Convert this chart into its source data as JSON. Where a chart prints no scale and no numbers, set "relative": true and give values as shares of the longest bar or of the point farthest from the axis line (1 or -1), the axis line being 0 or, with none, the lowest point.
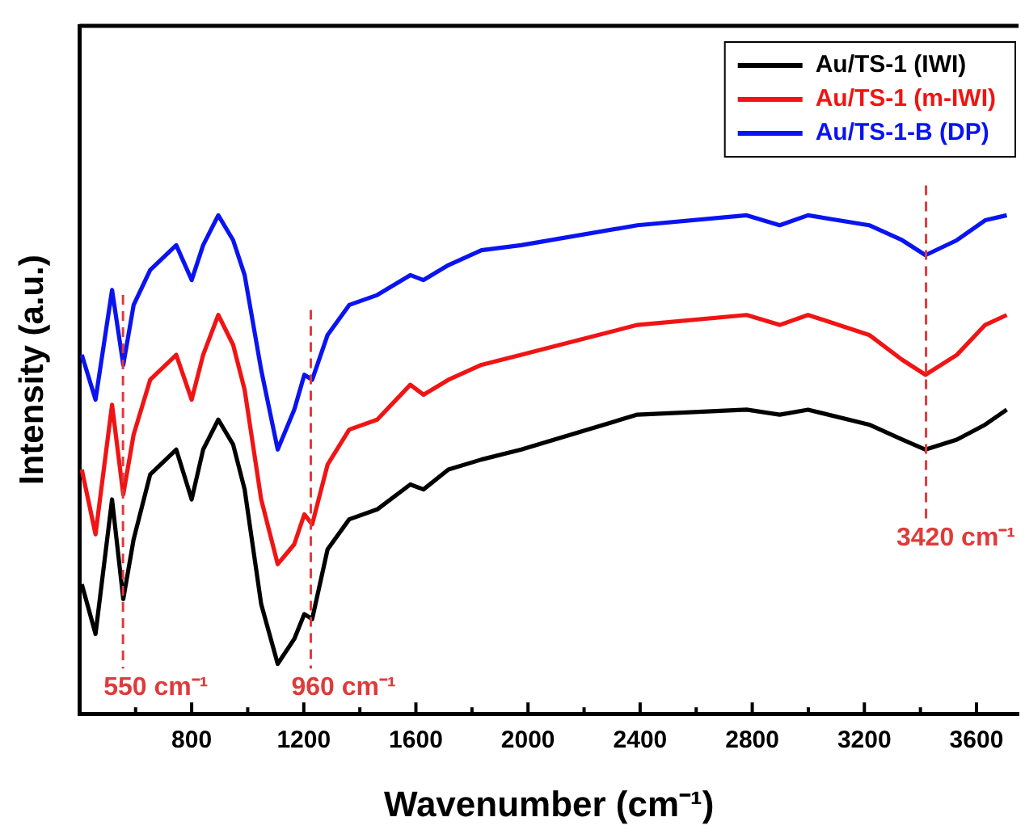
{
  "chart_data": {
    "type": "line",
    "xlabel": "Wavenumber (cm⁻¹)",
    "ylabel": "Intensity (a.u.)",
    "relative": true,
    "x": [
      408,
      457,
      516,
      556,
      593,
      652,
      745,
      800,
      841,
      895,
      948,
      989,
      1048,
      1107,
      1166,
      1202,
      1230,
      1285,
      1362,
      1462,
      1580,
      1627,
      1716,
      1834,
      1976,
      2390,
      2780,
      2898,
      2999,
      3217,
      3335,
      3418,
      3530,
      3631,
      3708
    ],
    "series": [
      {
        "name": "Au/TS-1 (IWI)",
        "color": "#000000",
        "values": [
          0.26,
          0.16,
          0.43,
          0.23,
          0.35,
          0.48,
          0.53,
          0.43,
          0.53,
          0.59,
          0.54,
          0.45,
          0.22,
          0.1,
          0.15,
          0.2,
          0.19,
          0.33,
          0.39,
          0.41,
          0.46,
          0.45,
          0.49,
          0.51,
          0.53,
          0.6,
          0.61,
          0.6,
          0.61,
          0.58,
          0.55,
          0.53,
          0.55,
          0.58,
          0.61
        ]
      },
      {
        "name": "Au/TS-1 (m-IWI)",
        "color": "#f01414",
        "values": [
          0.49,
          0.36,
          0.62,
          0.44,
          0.56,
          0.67,
          0.72,
          0.63,
          0.72,
          0.8,
          0.74,
          0.65,
          0.43,
          0.3,
          0.34,
          0.4,
          0.38,
          0.5,
          0.57,
          0.59,
          0.66,
          0.64,
          0.67,
          0.7,
          0.72,
          0.78,
          0.8,
          0.78,
          0.8,
          0.76,
          0.71,
          0.68,
          0.72,
          0.78,
          0.8
        ]
      },
      {
        "name": "Au/TS-1-B (DP)",
        "color": "#0a14f0",
        "values": [
          0.72,
          0.63,
          0.85,
          0.7,
          0.82,
          0.89,
          0.94,
          0.87,
          0.94,
          1.0,
          0.95,
          0.88,
          0.69,
          0.53,
          0.61,
          0.68,
          0.67,
          0.76,
          0.82,
          0.84,
          0.88,
          0.87,
          0.9,
          0.93,
          0.94,
          0.98,
          1.0,
          0.98,
          1.0,
          0.98,
          0.95,
          0.92,
          0.95,
          0.99,
          1.0
        ]
      }
    ],
    "xlim": [
      400,
      3750
    ],
    "xticks": [
      {
        "value": 600,
        "label": null
      },
      800,
      {
        "value": 1000,
        "label": null
      },
      1200,
      {
        "value": 1400,
        "label": null
      },
      1600,
      {
        "value": 1800,
        "label": null
      },
      2000,
      {
        "value": 2200,
        "label": null
      },
      2400,
      {
        "value": 2600,
        "label": null
      },
      2800,
      {
        "value": 3000,
        "label": null
      },
      3200,
      {
        "value": 3400,
        "label": null
      },
      3600
    ],
    "ref_lines": [
      {
        "axis": "x",
        "value": 555,
        "label": "550 cm⁻¹",
        "color": "#e03a3a",
        "line_style": "dashed"
      },
      {
        "axis": "x",
        "value": 1225,
        "label": "960 cm⁻¹",
        "color": "#e03a3a",
        "line_style": "dashed"
      },
      {
        "axis": "x",
        "value": 3420,
        "label": "3420 cm⁻¹",
        "color": "#e03a3a",
        "line_style": "dashed"
      }
    ],
    "legend": "top right",
    "grid": false,
    "marker": "none",
    "line_style": "solid"
  }
}
